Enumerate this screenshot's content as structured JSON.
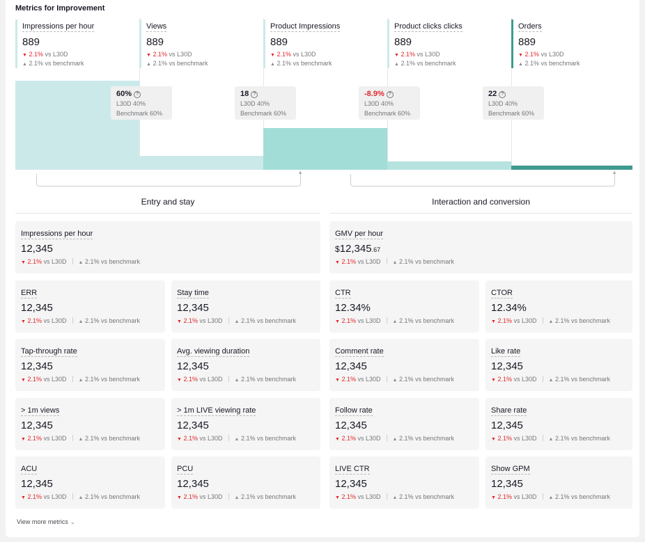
{
  "section_title": "Metrics for Improvement",
  "funnel": [
    {
      "name": "Impressions per hour",
      "value": "889",
      "delta_l30d": "2.1%",
      "delta_l30d_suffix": "vs L30D",
      "delta_bench": "2.1%",
      "delta_bench_suffix": "vs benchmark",
      "bar_level": 1.0,
      "color": "#cce9ea"
    },
    {
      "name": "Views",
      "value": "889",
      "delta_l30d": "2.1%",
      "delta_l30d_suffix": "vs L30D",
      "delta_bench": "2.1%",
      "delta_bench_suffix": "vs benchmark",
      "bar_level": 0.16,
      "color": "#cce9ea"
    },
    {
      "name": "Product Impressions",
      "value": "889",
      "delta_l30d": "2.1%",
      "delta_l30d_suffix": "vs L30D",
      "delta_bench": "2.1%",
      "delta_bench_suffix": "vs benchmark",
      "bar_level": 0.47,
      "color": "#a3ddd8"
    },
    {
      "name": "Product clicks clicks",
      "value": "889",
      "delta_l30d": "2.1%",
      "delta_l30d_suffix": "vs L30D",
      "delta_bench": "2.1%",
      "delta_bench_suffix": "vs benchmark",
      "bar_level": 0.09,
      "color": "#b6e3df"
    },
    {
      "name": "Orders",
      "value": "889",
      "delta_l30d": "2.1%",
      "delta_l30d_suffix": "vs L30D",
      "delta_bench": "2.1%",
      "delta_bench_suffix": "vs benchmark",
      "bar_level": 0.05,
      "color": "#3f9a8f"
    }
  ],
  "conversions": [
    {
      "pct": "60%",
      "l30d": "L30D 40%",
      "bench": "Benchmark 60%",
      "negative": false
    },
    {
      "pct": "18",
      "l30d": "L30D 40%",
      "bench": "Benchmark 60%",
      "negative": false
    },
    {
      "pct": "-8.9%",
      "l30d": "L30D 40%",
      "bench": "Benchmark 60%",
      "negative": true
    },
    {
      "pct": "22",
      "l30d": "L30D 40%",
      "bench": "Benchmark 60%",
      "negative": false
    }
  ],
  "groups": {
    "entry": "Entry and stay",
    "interaction": "Interaction and conversion"
  },
  "cards": {
    "impressions_per_hour": {
      "name": "Impressions per hour",
      "value": "12,345"
    },
    "gmv_per_hour": {
      "name": "GMV per hour",
      "currency": "$",
      "value": "12,345",
      "cents": ".67"
    },
    "err": {
      "name": "ERR",
      "value": "12,345"
    },
    "stay_time": {
      "name": "Stay time",
      "value": "12,345"
    },
    "ctr": {
      "name": "CTR",
      "value": "12.34%"
    },
    "ctor": {
      "name": "CTOR",
      "value": "12.34%"
    },
    "tap_through": {
      "name": "Tap-through rate",
      "value": "12,345"
    },
    "avg_viewing": {
      "name": "Avg. viewing duration",
      "value": "12,345"
    },
    "comment_rate": {
      "name": "Comment rate",
      "value": "12,345"
    },
    "like_rate": {
      "name": "Like rate",
      "value": "12,345"
    },
    "gt1m_views": {
      "name": "> 1m views",
      "value": "12,345"
    },
    "gt1m_live": {
      "name": "> 1m LIVE viewing rate",
      "value": "12,345"
    },
    "follow_rate": {
      "name": "Follow rate",
      "value": "12,345"
    },
    "share_rate": {
      "name": "Share rate",
      "value": "12,345"
    },
    "acu": {
      "name": "ACU",
      "value": "12,345"
    },
    "pcu": {
      "name": "PCU",
      "value": "12,345"
    },
    "live_ctr": {
      "name": "LIVE CTR",
      "value": "12,345"
    },
    "show_gpm": {
      "name": "Show GPM",
      "value": "12,345"
    }
  },
  "delta": {
    "l30d": "2.1%",
    "l30d_suffix": "vs L30D",
    "bench": "2.1%",
    "bench_suffix": "vs benchmark"
  },
  "view_more": "View more metrics",
  "colors": {
    "down": "#e0262a",
    "bar_light": "#cce9ea",
    "bar_dark": "#3f9a8f"
  }
}
